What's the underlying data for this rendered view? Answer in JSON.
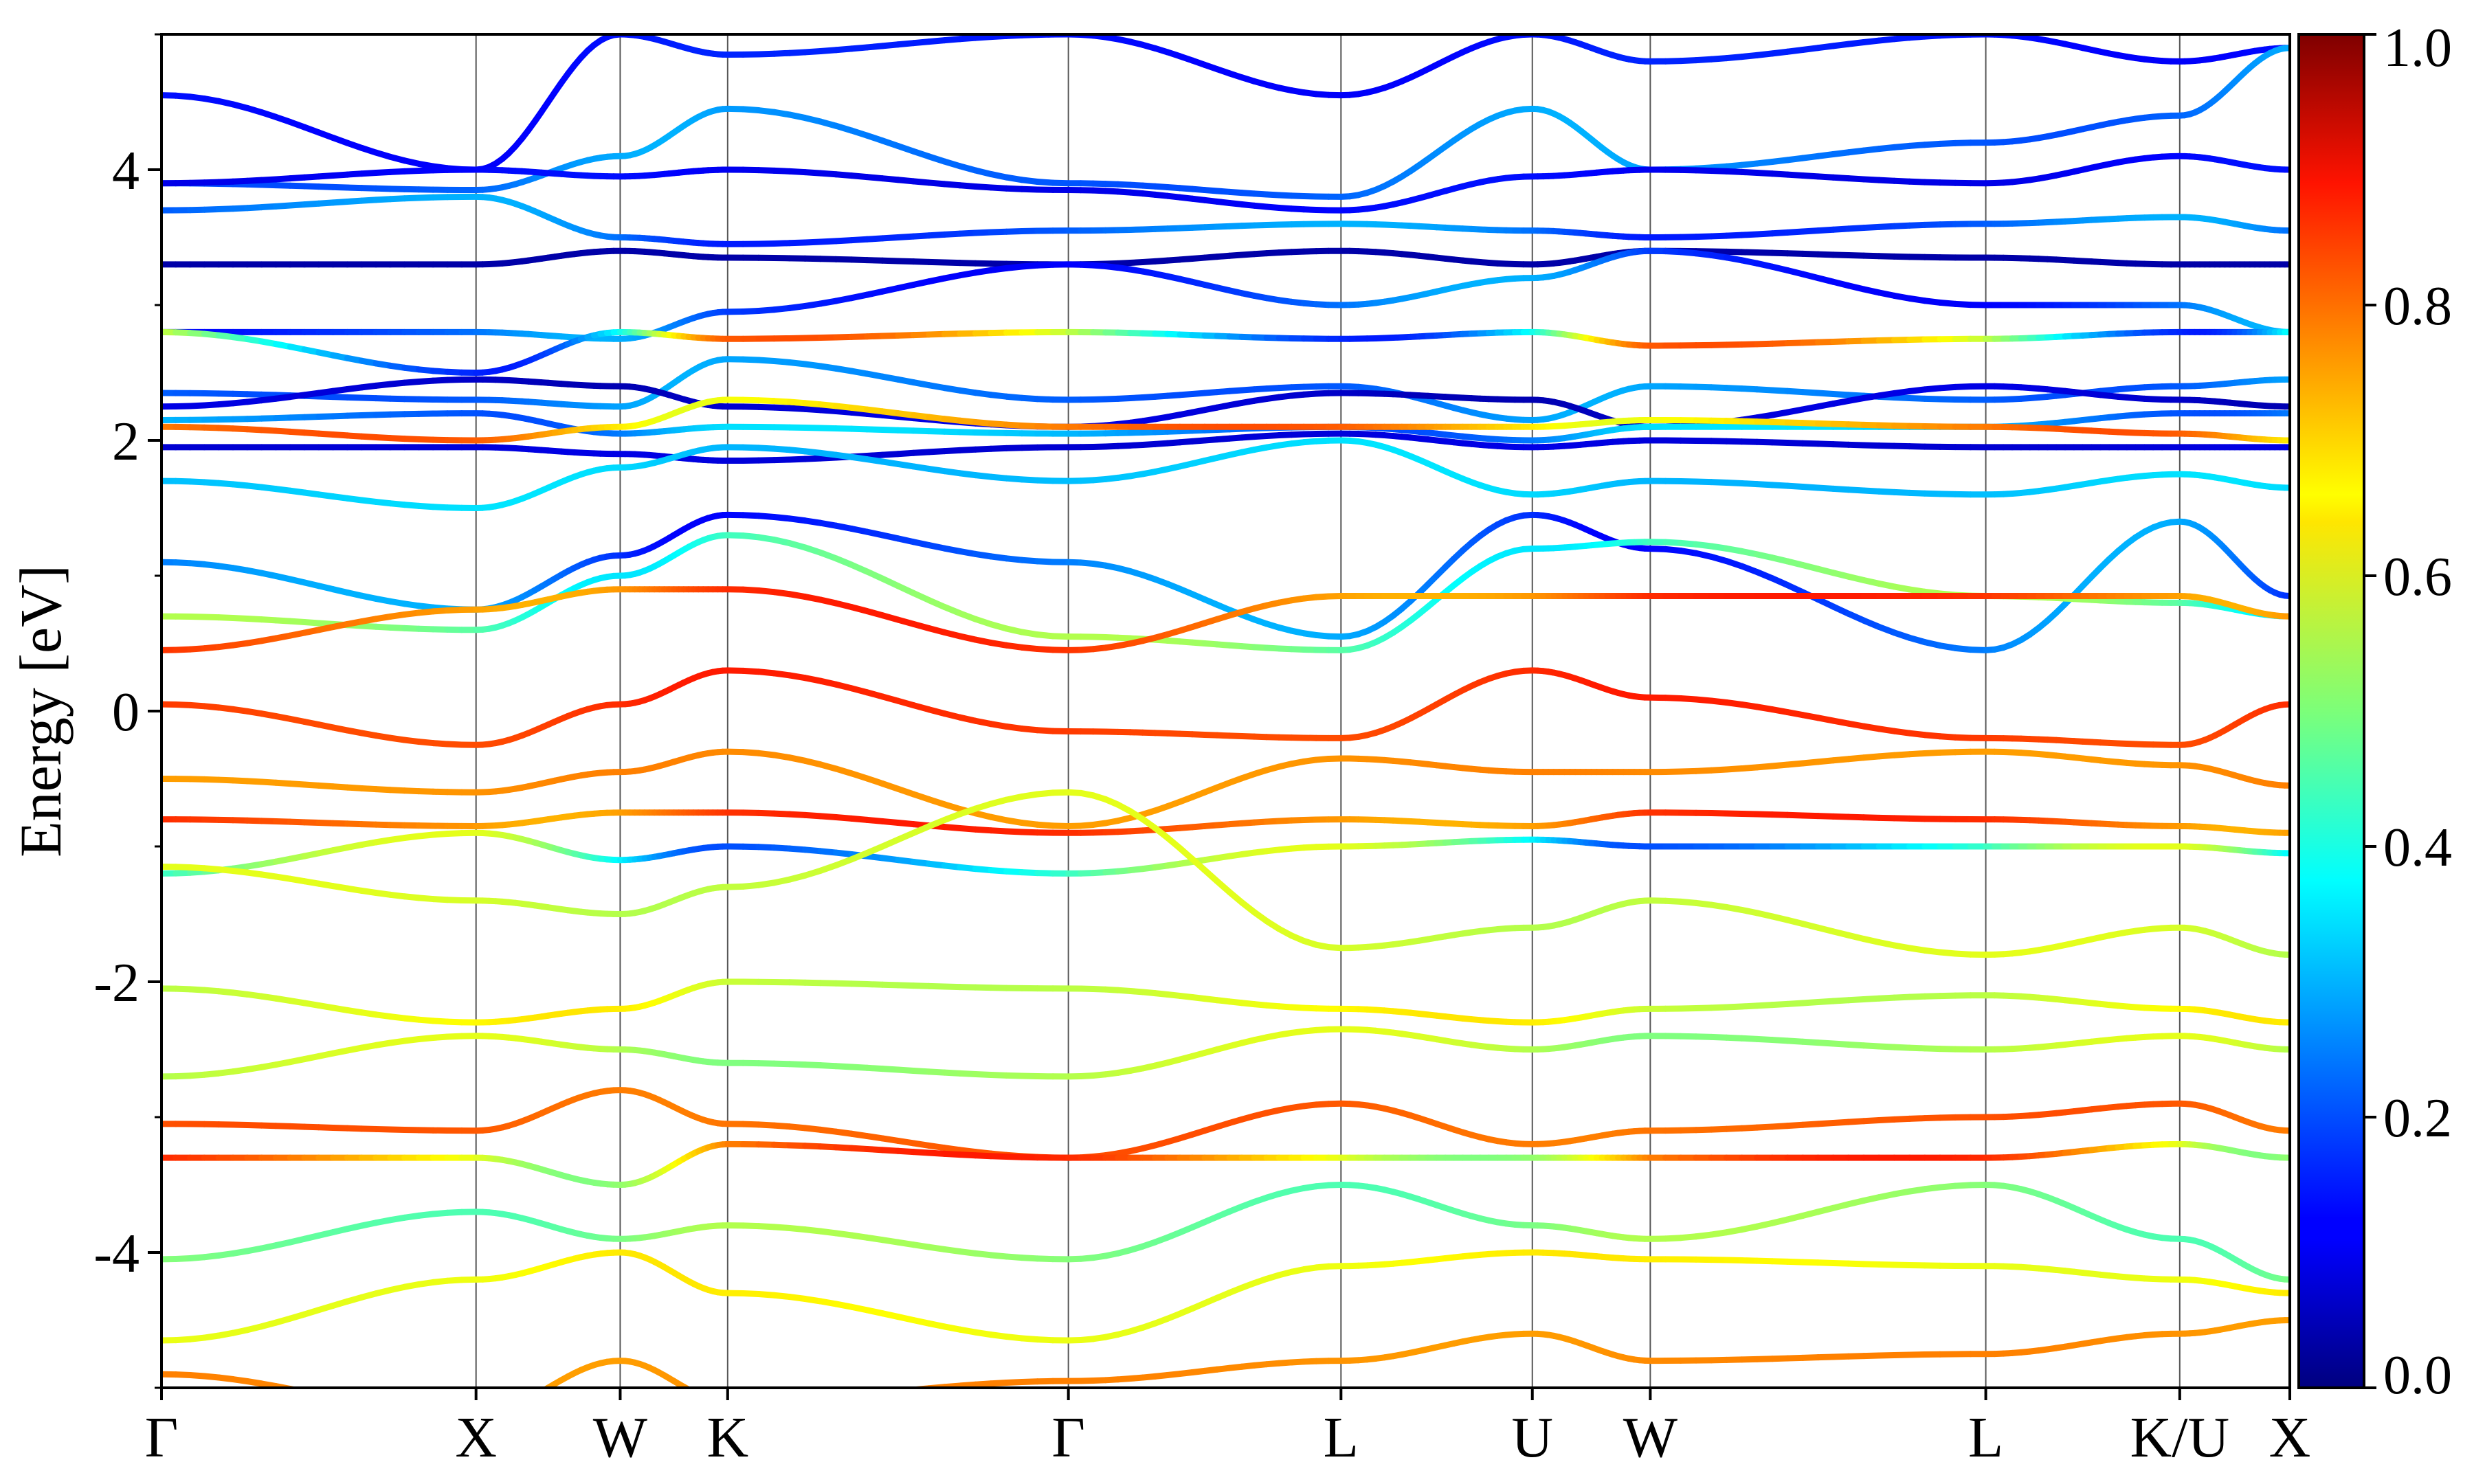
{
  "chart_data": {
    "type": "line",
    "title": "",
    "xlabel": "",
    "ylabel": "Energy [eV]",
    "ylim": [
      -5,
      5
    ],
    "yticks": [
      -4,
      -2,
      0,
      2,
      4
    ],
    "ytick_labels": [
      "-4",
      "-2",
      "0",
      "2",
      "4"
    ],
    "kpath_positions": [
      0,
      1.2,
      1.75,
      2.16,
      3.46,
      4.5,
      5.23,
      5.68,
      6.96,
      7.7,
      8.12
    ],
    "kpath_labels": [
      "Γ",
      "X",
      "W",
      "K",
      "Γ",
      "L",
      "U",
      "W",
      "L",
      "K/U",
      "X"
    ],
    "grid": "vertical lines at high-symmetry points",
    "colormap": "jet",
    "colorbar": {
      "range": [
        0,
        1
      ],
      "ticks": [
        0,
        0.2,
        0.4,
        0.6,
        0.8,
        1.0
      ],
      "tick_labels": [
        "0.0",
        "0.2",
        "0.4",
        "0.6",
        "0.8",
        "1.0"
      ],
      "placement": "right"
    },
    "series": [
      {
        "weights": [
          0.16,
          0.12
        ],
        "values": [
          4.55,
          4.0,
          5.0,
          4.85,
          5.0,
          4.55,
          5.0,
          4.8,
          5.0,
          4.8,
          4.9
        ]
      },
      {
        "weights": [
          0.3,
          0.2
        ],
        "values": [
          3.9,
          3.85,
          4.1,
          4.45,
          3.9,
          3.8,
          4.45,
          4.0,
          4.2,
          4.4,
          4.9
        ]
      },
      {
        "weights": [
          0.14,
          0.1
        ],
        "values": [
          3.9,
          4.0,
          3.95,
          4.0,
          3.85,
          3.7,
          3.95,
          4.0,
          3.9,
          4.1,
          4.0
        ]
      },
      {
        "weights": [
          0.3,
          0.15
        ],
        "values": [
          3.7,
          3.8,
          3.5,
          3.45,
          3.55,
          3.6,
          3.55,
          3.5,
          3.6,
          3.65,
          3.55
        ]
      },
      {
        "weights": [
          0.04,
          0.04
        ],
        "values": [
          3.3,
          3.3,
          3.4,
          3.35,
          3.3,
          3.4,
          3.3,
          3.4,
          3.35,
          3.3,
          3.3
        ]
      },
      {
        "weights": [
          0.12,
          0.3
        ],
        "values": [
          2.8,
          2.8,
          2.75,
          2.95,
          3.3,
          3.0,
          3.2,
          3.4,
          3.0,
          3.0,
          2.8
        ]
      },
      {
        "weights": [
          0.8,
          0.15
        ],
        "values": [
          2.8,
          2.5,
          2.8,
          2.75,
          2.8,
          2.75,
          2.8,
          2.7,
          2.75,
          2.8,
          2.8
        ]
      },
      {
        "weights": [
          0.3,
          0.2
        ],
        "values": [
          2.35,
          2.3,
          2.25,
          2.6,
          2.3,
          2.4,
          2.15,
          2.4,
          2.3,
          2.4,
          2.45
        ]
      },
      {
        "weights": [
          0.05,
          0.1
        ],
        "values": [
          2.25,
          2.45,
          2.4,
          2.25,
          2.1,
          2.35,
          2.3,
          2.1,
          2.4,
          2.3,
          2.25
        ]
      },
      {
        "weights": [
          0.2,
          0.35
        ],
        "values": [
          2.15,
          2.2,
          2.05,
          2.1,
          2.05,
          2.1,
          2.0,
          2.1,
          2.1,
          2.2,
          2.2
        ]
      },
      {
        "weights": [
          0.8,
          0.6
        ],
        "values": [
          2.1,
          2.0,
          2.1,
          2.3,
          2.1,
          2.1,
          2.1,
          2.15,
          2.1,
          2.05,
          2.0
        ]
      },
      {
        "weights": [
          0.08,
          0.1
        ],
        "values": [
          1.95,
          1.95,
          1.9,
          1.85,
          1.95,
          2.05,
          1.95,
          2.0,
          1.95,
          1.95,
          1.95
        ]
      },
      {
        "weights": [
          0.3,
          0.35
        ],
        "values": [
          1.7,
          1.5,
          1.8,
          1.95,
          1.7,
          2.0,
          1.6,
          1.7,
          1.6,
          1.75,
          1.65
        ]
      },
      {
        "weights": [
          0.12,
          0.3
        ],
        "values": [
          1.1,
          0.75,
          1.15,
          1.45,
          1.1,
          0.55,
          1.45,
          1.2,
          0.45,
          1.4,
          0.85
        ]
      },
      {
        "weights": [
          0.35,
          0.55
        ],
        "values": [
          0.7,
          0.6,
          1.0,
          1.3,
          0.55,
          0.45,
          1.2,
          1.25,
          0.85,
          0.8,
          0.7
        ]
      },
      {
        "weights": [
          0.7,
          0.85
        ],
        "values": [
          0.45,
          0.75,
          0.9,
          0.9,
          0.45,
          0.85,
          0.85,
          0.85,
          0.85,
          0.85,
          0.7
        ]
      },
      {
        "weights": [
          0.8,
          0.85
        ],
        "values": [
          0.05,
          -0.25,
          0.05,
          0.3,
          -0.15,
          -0.2,
          0.3,
          0.1,
          -0.2,
          -0.25,
          0.05
        ]
      },
      {
        "weights": [
          0.72,
          0.75
        ],
        "values": [
          -0.5,
          -0.6,
          -0.45,
          -0.3,
          -0.85,
          -0.35,
          -0.45,
          -0.45,
          -0.3,
          -0.4,
          -0.55
        ]
      },
      {
        "weights": [
          0.85,
          0.7
        ],
        "values": [
          -0.8,
          -0.85,
          -0.75,
          -0.75,
          -0.9,
          -0.8,
          -0.85,
          -0.75,
          -0.8,
          -0.85,
          -0.9
        ]
      },
      {
        "weights": [
          0.2,
          0.6
        ],
        "values": [
          -1.2,
          -0.9,
          -1.1,
          -1.0,
          -1.2,
          -1.0,
          -0.95,
          -1.0,
          -1.0,
          -1.0,
          -1.05
        ]
      },
      {
        "weights": [
          0.55,
          0.6
        ],
        "values": [
          -1.15,
          -1.4,
          -1.5,
          -1.3,
          -0.6,
          -1.75,
          -1.6,
          -1.4,
          -1.8,
          -1.6,
          -1.8
        ]
      },
      {
        "weights": [
          0.65,
          0.55
        ],
        "values": [
          -2.05,
          -2.3,
          -2.2,
          -2.0,
          -2.05,
          -2.2,
          -2.3,
          -2.2,
          -2.1,
          -2.2,
          -2.3
        ]
      },
      {
        "weights": [
          0.6,
          0.5
        ],
        "values": [
          -2.7,
          -2.4,
          -2.5,
          -2.6,
          -2.7,
          -2.35,
          -2.5,
          -2.4,
          -2.5,
          -2.4,
          -2.5
        ]
      },
      {
        "weights": [
          0.8,
          0.75
        ],
        "values": [
          -3.05,
          -3.1,
          -2.8,
          -3.05,
          -3.3,
          -2.9,
          -3.2,
          -3.1,
          -3.0,
          -2.9,
          -3.1
        ]
      },
      {
        "weights": [
          0.85,
          0.5
        ],
        "values": [
          -3.3,
          -3.3,
          -3.5,
          -3.2,
          -3.3,
          -3.3,
          -3.3,
          -3.3,
          -3.3,
          -3.2,
          -3.3
        ]
      },
      {
        "weights": [
          0.55,
          0.45
        ],
        "values": [
          -4.05,
          -3.7,
          -3.9,
          -3.8,
          -4.05,
          -3.5,
          -3.8,
          -3.9,
          -3.5,
          -3.9,
          -4.2
        ]
      },
      {
        "weights": [
          0.65,
          0.6
        ],
        "values": [
          -4.65,
          -4.2,
          -4.0,
          -4.3,
          -4.65,
          -4.1,
          -4.0,
          -4.05,
          -4.1,
          -4.2,
          -4.3
        ]
      },
      {
        "weights": [
          0.72,
          0.75
        ],
        "values": [
          -4.9,
          -5.2,
          -4.8,
          -5.1,
          -4.95,
          -4.8,
          -4.6,
          -4.8,
          -4.75,
          -4.6,
          -4.5
        ]
      }
    ]
  }
}
